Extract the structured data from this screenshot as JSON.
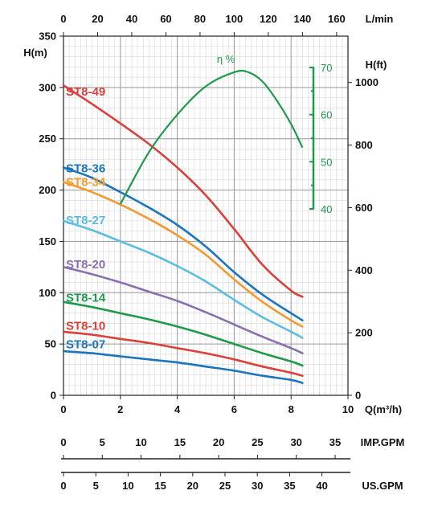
{
  "chart_data": {
    "type": "line",
    "x_unit": "Q(m³/h)",
    "x": [
      0,
      2,
      4,
      6,
      8
    ],
    "xlim": [
      0,
      10
    ],
    "xticks": [
      "0",
      "2",
      "4",
      "6",
      "8",
      "10"
    ],
    "y_unit": "H(m)",
    "ylim": [
      0,
      350
    ],
    "yticks": [
      "0",
      "50",
      "100",
      "150",
      "200",
      "250",
      "300",
      "350"
    ],
    "y2_unit": "H(ft)",
    "y2ticks": [
      "0",
      "200",
      "400",
      "600",
      "800",
      "1000"
    ],
    "top_unit": "L/min",
    "top_ticks": [
      "0",
      "20",
      "40",
      "60",
      "80",
      "100",
      "120",
      "140",
      "160"
    ],
    "grid": true,
    "series": [
      {
        "name": "ST8-49",
        "color": "#d9413a",
        "x": [
          0,
          1,
          2,
          3,
          4,
          5,
          6,
          7,
          8,
          8.4
        ],
        "values": [
          302,
          284,
          265,
          245,
          222,
          195,
          162,
          127,
          102,
          96
        ]
      },
      {
        "name": "ST8-36",
        "color": "#1b75bb",
        "x": [
          0,
          1,
          2,
          3,
          4,
          5,
          6,
          7,
          8,
          8.4
        ],
        "values": [
          222,
          212,
          198,
          183,
          166,
          145,
          120,
          98,
          80,
          73
        ]
      },
      {
        "name": "ST8-34",
        "color": "#f29a2e",
        "x": [
          0,
          1,
          2,
          3,
          4,
          5,
          6,
          7,
          8,
          8.4
        ],
        "values": [
          208,
          198,
          186,
          172,
          156,
          137,
          113,
          91,
          73,
          67
        ]
      },
      {
        "name": "ST8-27",
        "color": "#5bbde0",
        "x": [
          0,
          1,
          2,
          3,
          4,
          5,
          6,
          7,
          8,
          8.4
        ],
        "values": [
          170,
          161,
          150,
          139,
          126,
          111,
          93,
          76,
          62,
          56
        ]
      },
      {
        "name": "ST8-20",
        "color": "#8a6fb0",
        "x": [
          0,
          1,
          2,
          3,
          4,
          5,
          6,
          7,
          8,
          8.4
        ],
        "values": [
          125,
          118,
          110,
          101,
          92,
          81,
          69,
          57,
          46,
          41
        ]
      },
      {
        "name": "ST8-14",
        "color": "#1f9a4a",
        "x": [
          0,
          1,
          2,
          3,
          4,
          5,
          6,
          7,
          8,
          8.4
        ],
        "values": [
          91,
          86,
          80,
          74,
          67,
          59,
          50,
          41,
          33,
          29
        ]
      },
      {
        "name": "ST8-10",
        "color": "#d9413a",
        "x": [
          0,
          1,
          2,
          3,
          4,
          5,
          6,
          7,
          8,
          8.4
        ],
        "values": [
          62,
          59,
          55,
          51,
          46,
          41,
          35,
          28,
          22,
          19
        ]
      },
      {
        "name": "ST8-07",
        "color": "#1b75bb",
        "x": [
          0,
          1,
          2,
          3,
          4,
          5,
          6,
          7,
          8,
          8.4
        ],
        "values": [
          43,
          41,
          38,
          35,
          32,
          28,
          24,
          19,
          15,
          12
        ]
      }
    ],
    "efficiency": {
      "label": "η %",
      "color": "#1f9a4a",
      "x": [
        2,
        3,
        4,
        5,
        6,
        6.5,
        7,
        7.5,
        8,
        8.4
      ],
      "values": [
        41,
        52,
        60,
        66,
        69,
        69,
        67,
        63,
        58,
        53
      ],
      "scale_ticks": [
        "40",
        "50",
        "60",
        "70"
      ],
      "range": [
        40,
        70
      ]
    },
    "imp_gpm": {
      "unit": "IMP.GPM",
      "ticks": [
        "0",
        "5",
        "10",
        "15",
        "20",
        "25",
        "30",
        "35"
      ]
    },
    "us_gpm": {
      "unit": "US.GPM",
      "ticks": [
        "0",
        "5",
        "10",
        "15",
        "20",
        "25",
        "30",
        "35",
        "40"
      ]
    }
  }
}
